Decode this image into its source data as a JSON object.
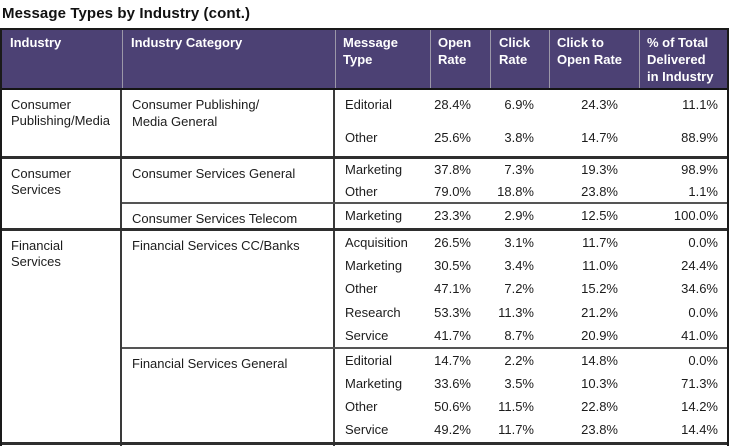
{
  "title": "Message Types by Industry (cont.)",
  "colors": {
    "header_bg": "#4c4174",
    "header_text": "#ffffff",
    "header_divider": "#9b97a8",
    "border_dark": "#1a1a1a",
    "industry_separator": "#2e2e2e",
    "category_separator": "#555555",
    "body_text": "#1c1c1c"
  },
  "table": {
    "columns": [
      "Industry",
      "Industry Category",
      "Message\nType",
      "Open\nRate",
      "Click\nRate",
      "Click to\nOpen Rate",
      "% of Total\nDelivered\nin Industry"
    ],
    "industries": [
      {
        "name": "Consumer\nPublishing/Media",
        "categories": [
          {
            "name": "Consumer Publishing/\nMedia General",
            "rows": [
              {
                "type": "Editorial",
                "open": "28.4%",
                "click": "6.9%",
                "cto": "24.3%",
                "pct": "11.1%"
              },
              {
                "type": "Other",
                "open": "25.6%",
                "click": "3.8%",
                "cto": "14.7%",
                "pct": "88.9%"
              }
            ]
          }
        ]
      },
      {
        "name": "Consumer Services",
        "categories": [
          {
            "name": "Consumer Services General",
            "rows": [
              {
                "type": "Marketing",
                "open": "37.8%",
                "click": "7.3%",
                "cto": "19.3%",
                "pct": "98.9%"
              },
              {
                "type": "Other",
                "open": "79.0%",
                "click": "18.8%",
                "cto": "23.8%",
                "pct": "1.1%"
              }
            ]
          },
          {
            "name": "Consumer Services Telecom",
            "rows": [
              {
                "type": "Marketing",
                "open": "23.3%",
                "click": "2.9%",
                "cto": "12.5%",
                "pct": "100.0%"
              }
            ]
          }
        ]
      },
      {
        "name": "Financial Services",
        "categories": [
          {
            "name": "Financial Services CC/Banks",
            "rows": [
              {
                "type": "Acquisition",
                "open": "26.5%",
                "click": "3.1%",
                "cto": "11.7%",
                "pct": "0.0%"
              },
              {
                "type": "Marketing",
                "open": "30.5%",
                "click": "3.4%",
                "cto": "11.0%",
                "pct": "24.4%"
              },
              {
                "type": "Other",
                "open": "47.1%",
                "click": "7.2%",
                "cto": "15.2%",
                "pct": "34.6%"
              },
              {
                "type": "Research",
                "open": "53.3%",
                "click": "11.3%",
                "cto": "21.2%",
                "pct": "0.0%"
              },
              {
                "type": "Service",
                "open": "41.7%",
                "click": "8.7%",
                "cto": "20.9%",
                "pct": "41.0%"
              }
            ]
          },
          {
            "name": "Financial Services General",
            "rows": [
              {
                "type": "Editorial",
                "open": "14.7%",
                "click": "2.2%",
                "cto": "14.8%",
                "pct": "0.0%"
              },
              {
                "type": "Marketing",
                "open": "33.6%",
                "click": "3.5%",
                "cto": "10.3%",
                "pct": "71.3%"
              },
              {
                "type": "Other",
                "open": "50.6%",
                "click": "11.5%",
                "cto": "22.8%",
                "pct": "14.2%"
              },
              {
                "type": "Service",
                "open": "49.2%",
                "click": "11.7%",
                "cto": "23.8%",
                "pct": "14.4%"
              }
            ]
          }
        ]
      }
    ]
  }
}
